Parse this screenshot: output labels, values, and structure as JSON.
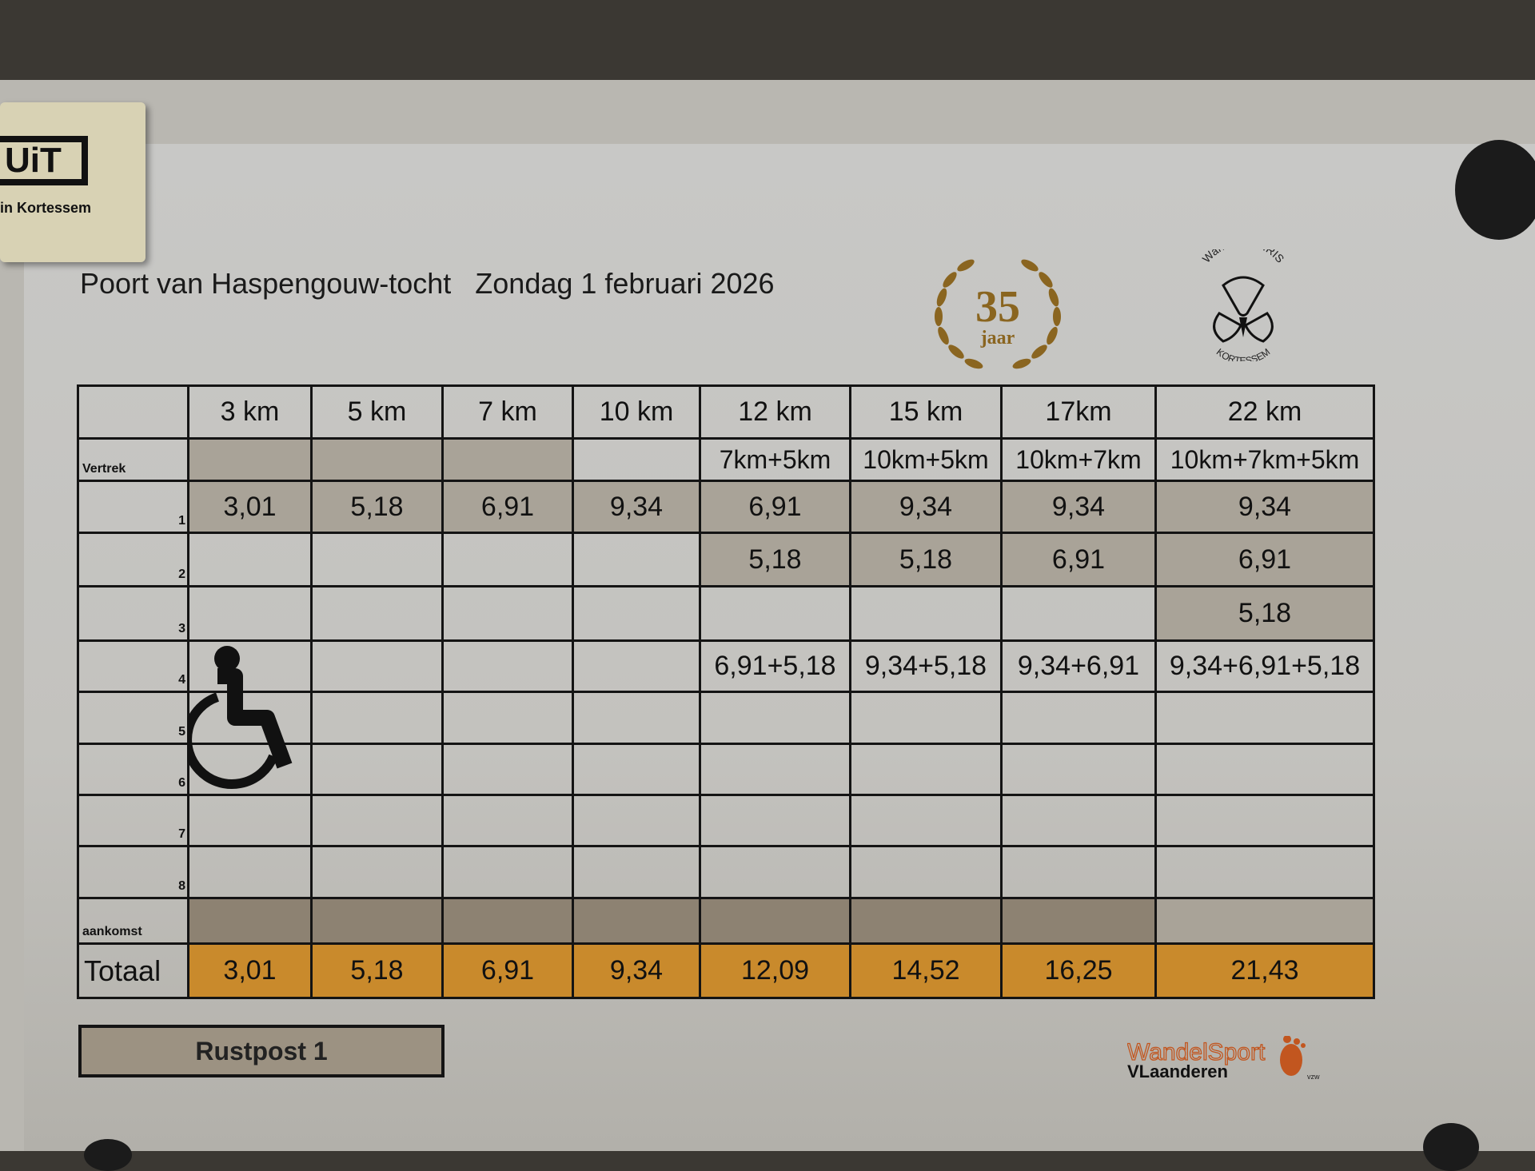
{
  "header": {
    "title": "Poort van Haspengouw-tocht   Zondag 1 februari 2026"
  },
  "logos": {
    "magnet": "UiT in Kortessem",
    "anniversary": {
      "number": "35",
      "word": "jaar"
    },
    "club": {
      "top": "Wandelclub IRIS",
      "bottom": "KORTESSEM"
    },
    "sponsor": {
      "line1": "WandelSport",
      "line2": "VLaanderen",
      "tag": "vzw"
    }
  },
  "table": {
    "columns": [
      "",
      "3 km",
      "5 km",
      "7 km",
      "10 km",
      "12 km",
      "15 km",
      "17km",
      "22 km"
    ],
    "rows": [
      {
        "label": "Vertrek",
        "cells": [
          "",
          "",
          "",
          "",
          "7km+5km",
          "10km+5km",
          "10km+7km",
          "10km+7km+5km"
        ]
      },
      {
        "label": "1",
        "cells": [
          "3,01",
          "5,18",
          "6,91",
          "9,34",
          "6,91",
          "9,34",
          "9,34",
          "9,34"
        ]
      },
      {
        "label": "2",
        "cells": [
          "",
          "",
          "",
          "",
          "5,18",
          "5,18",
          "6,91",
          "6,91"
        ]
      },
      {
        "label": "3",
        "cells": [
          "",
          "",
          "",
          "",
          "",
          "",
          "",
          "5,18"
        ]
      },
      {
        "label": "4",
        "cells": [
          "",
          "",
          "",
          "",
          "6,91+5,18",
          "9,34+5,18",
          "9,34+6,91",
          "9,34+6,91+5,18"
        ]
      },
      {
        "label": "5",
        "cells": [
          "",
          "",
          "",
          "",
          "",
          "",
          "",
          ""
        ]
      },
      {
        "label": "6",
        "cells": [
          "",
          "",
          "",
          "",
          "",
          "",
          "",
          ""
        ]
      },
      {
        "label": "7",
        "cells": [
          "",
          "",
          "",
          "",
          "",
          "",
          "",
          ""
        ]
      },
      {
        "label": "8",
        "cells": [
          "",
          "",
          "",
          "",
          "",
          "",
          "",
          ""
        ]
      },
      {
        "label": "aankomst",
        "cells": [
          "",
          "",
          "",
          "",
          "",
          "",
          "",
          ""
        ]
      }
    ],
    "total": {
      "label": "Totaal",
      "cells": [
        "3,01",
        "5,18",
        "6,91",
        "9,34",
        "12,09",
        "14,52",
        "16,25",
        "21,43"
      ]
    }
  },
  "legend": {
    "rustpost": "Rustpost 1"
  },
  "colors": {
    "total": "#c98a2c",
    "rustpost": "#9c9282",
    "sponsor_orange": "#c2561f"
  }
}
